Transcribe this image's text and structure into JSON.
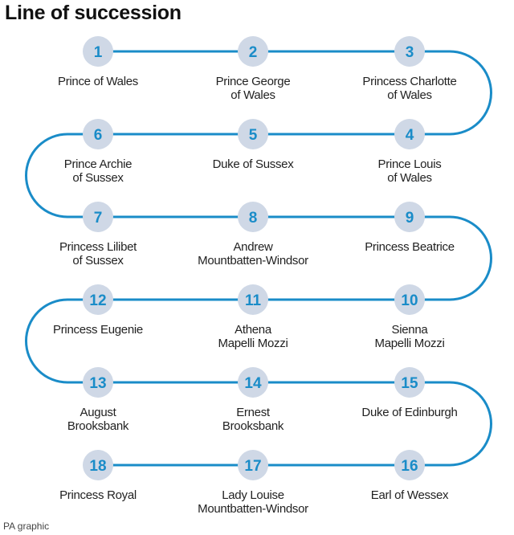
{
  "title": "Line of succession",
  "credit": "PA graphic",
  "colors": {
    "line": "#1a8cc8",
    "circle_fill": "#cfd8e6",
    "number": "#1a8cc8",
    "text": "#222222"
  },
  "succession": [
    {
      "number": "1",
      "label": [
        "Prince of Wales"
      ]
    },
    {
      "number": "2",
      "label": [
        "Prince George",
        "of Wales"
      ]
    },
    {
      "number": "3",
      "label": [
        "Princess Charlotte",
        "of Wales"
      ]
    },
    {
      "number": "4",
      "label": [
        "Prince Louis",
        "of Wales"
      ]
    },
    {
      "number": "5",
      "label": [
        "Duke of Sussex"
      ]
    },
    {
      "number": "6",
      "label": [
        "Prince Archie",
        "of Sussex"
      ]
    },
    {
      "number": "7",
      "label": [
        "Princess Lilibet",
        "of Sussex"
      ]
    },
    {
      "number": "8",
      "label": [
        "Andrew",
        "Mountbatten-Windsor"
      ]
    },
    {
      "number": "9",
      "label": [
        "Princess Beatrice"
      ]
    },
    {
      "number": "10",
      "label": [
        "Sienna",
        "Mapelli Mozzi"
      ]
    },
    {
      "number": "11",
      "label": [
        "Athena",
        "Mapelli Mozzi"
      ]
    },
    {
      "number": "12",
      "label": [
        "Princess Eugenie"
      ]
    },
    {
      "number": "13",
      "label": [
        "August",
        "Brooksbank"
      ]
    },
    {
      "number": "14",
      "label": [
        "Ernest",
        "Brooksbank"
      ]
    },
    {
      "number": "15",
      "label": [
        "Duke of Edinburgh"
      ]
    },
    {
      "number": "16",
      "label": [
        "Earl of Wessex"
      ]
    },
    {
      "number": "17",
      "label": [
        "Lady Louise",
        "Mountbatten-Windsor"
      ]
    },
    {
      "number": "18",
      "label": [
        "Princess Royal"
      ]
    }
  ]
}
